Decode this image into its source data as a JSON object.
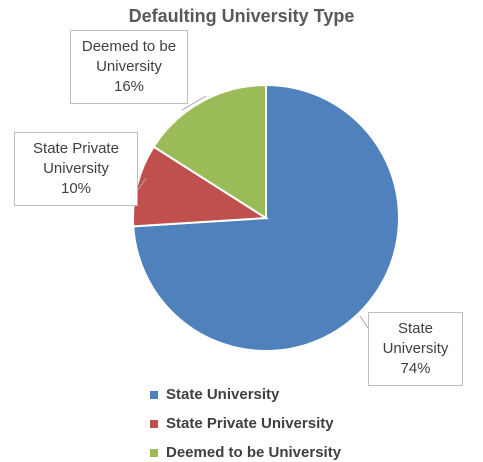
{
  "chart_data": {
    "type": "pie",
    "title": "Defaulting University Type",
    "categories": [
      "State University",
      "State Private University",
      "Deemed to be University"
    ],
    "values": [
      74,
      10,
      16
    ],
    "value_labels": [
      "74%",
      "10%",
      "16%"
    ],
    "colors": [
      "#4f81bd",
      "#c0504d",
      "#9bbb59"
    ],
    "legend": "bottom"
  }
}
